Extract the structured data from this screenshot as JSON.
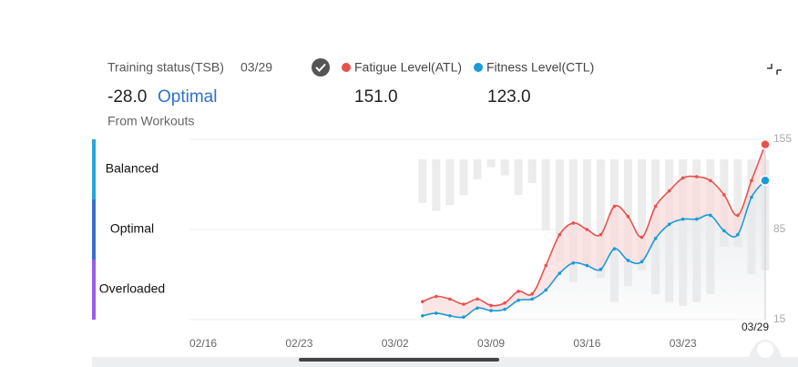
{
  "header": {
    "title": "Training status(TSB)",
    "date": "03/29",
    "tsb_value": "-28.0",
    "status": "Optimal",
    "source": "From Workouts"
  },
  "chart_data": {
    "type": "line",
    "x": [
      "03/04",
      "03/05",
      "03/06",
      "03/07",
      "03/08",
      "03/09",
      "03/10",
      "03/11",
      "03/12",
      "03/13",
      "03/14",
      "03/15",
      "03/16",
      "03/17",
      "03/18",
      "03/19",
      "03/20",
      "03/21",
      "03/22",
      "03/23",
      "03/24",
      "03/25",
      "03/26",
      "03/27",
      "03/28",
      "03/29"
    ],
    "series": [
      {
        "name": "Fatigue Level(ATL)",
        "color": "#e8524e",
        "current": "151.0",
        "values": [
          29,
          33,
          31,
          27,
          31,
          26,
          28,
          37,
          35,
          57,
          81,
          90,
          85,
          81,
          103,
          95,
          79,
          103,
          115,
          125,
          126,
          123,
          112,
          96,
          123,
          151
        ]
      },
      {
        "name": "Fitness Level(CTL)",
        "color": "#1a9bd6",
        "current": "123.0",
        "values": [
          18,
          20,
          18,
          17,
          24,
          22,
          23,
          30,
          31,
          38,
          51,
          59,
          57,
          54,
          70,
          61,
          60,
          78,
          89,
          93,
          93,
          96,
          84,
          81,
          110,
          123
        ]
      }
    ],
    "bars": {
      "color": "#ececec",
      "axis": "y2",
      "values": [
        -11,
        -13,
        -11.5,
        -9,
        -5,
        -2,
        -4,
        -9,
        -6,
        -18,
        -26,
        -31,
        -27,
        -30,
        -36,
        -32,
        -28,
        -34,
        -36,
        -37,
        -36,
        -34,
        -22,
        -22,
        -29,
        -28
      ]
    },
    "zones": [
      {
        "label": "Balanced",
        "color": "#2aa5dc"
      },
      {
        "label": "Optimal",
        "color": "#3a6fcf"
      },
      {
        "label": "Overloaded",
        "color": "#9a5ce6"
      }
    ],
    "xlim": [
      "02/15",
      "03/29"
    ],
    "xticks": [
      "02/16",
      "02/23",
      "03/02",
      "03/09",
      "03/16",
      "03/23"
    ],
    "end_label": "03/29",
    "ylim": [
      15,
      155
    ],
    "yticks": [
      15,
      85,
      155
    ],
    "y2lim": [
      -40,
      0
    ],
    "grid": true
  }
}
